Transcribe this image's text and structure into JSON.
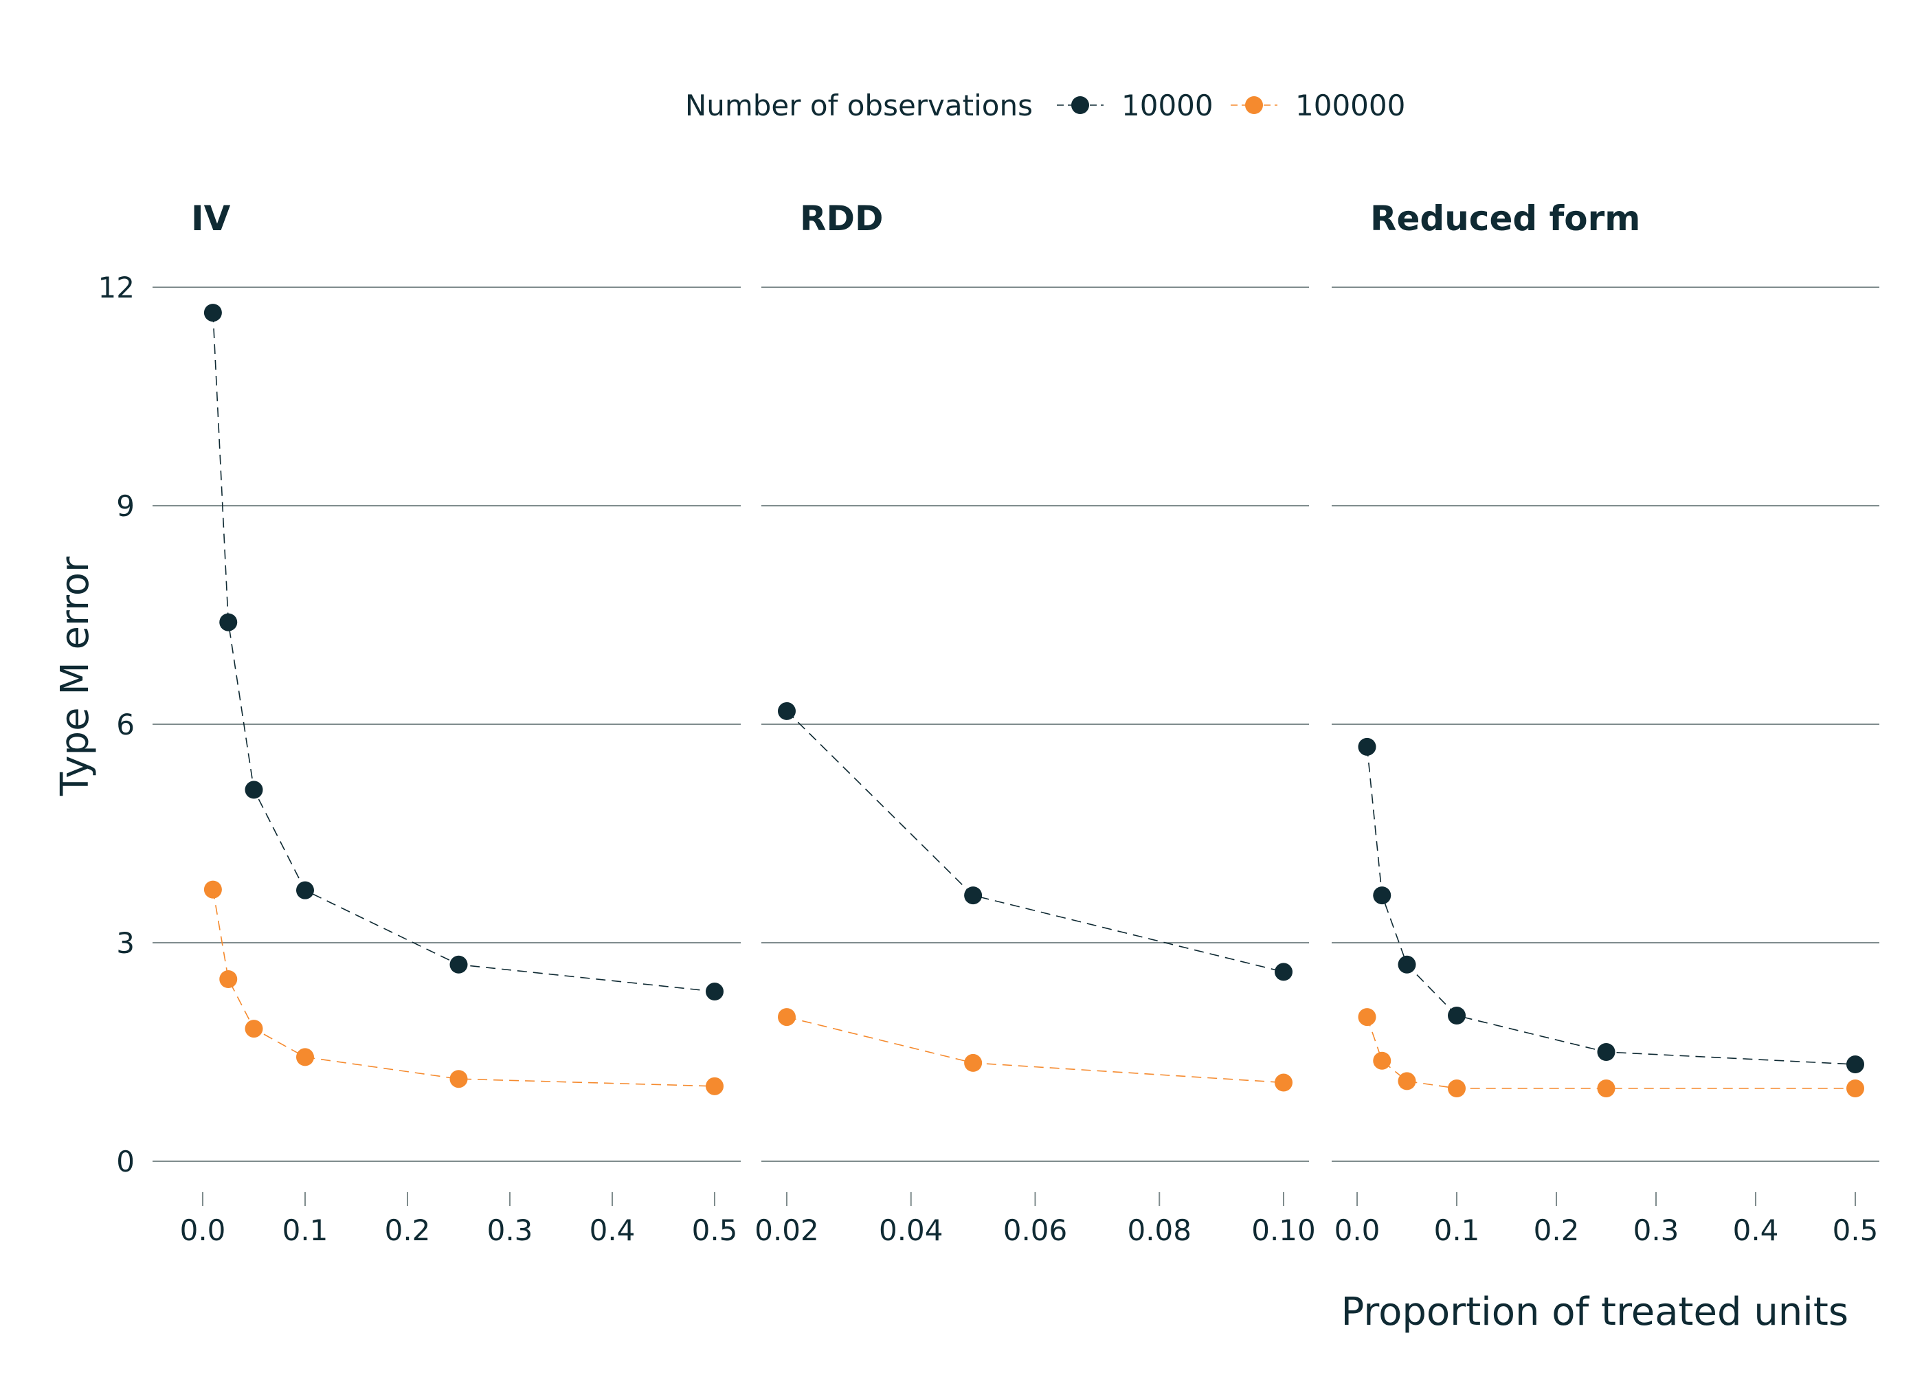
{
  "chart_data": {
    "type": "line",
    "ylabel": "Type M error",
    "xlabel": "Proportion of treated units",
    "legend": {
      "title": "Number of observations",
      "position": "top",
      "entries": [
        "10000",
        "100000"
      ]
    },
    "colors": {
      "10000": "#0f2a33",
      "100000": "#f58a2e"
    },
    "grid": "horizontal",
    "ylim": [
      0,
      12
    ],
    "yticks": [
      "0",
      "3",
      "6",
      "9",
      "12"
    ],
    "panels": [
      {
        "title": "IV",
        "xlim": [
          0,
          0.5
        ],
        "xticks": [
          "0.0",
          "0.1",
          "0.2",
          "0.3",
          "0.4",
          "0.5"
        ],
        "series": [
          {
            "name": "10000",
            "x": [
              0.01,
              0.025,
              0.05,
              0.1,
              0.25,
              0.5
            ],
            "y": [
              11.65,
              7.4,
              5.1,
              3.72,
              2.7,
              2.33
            ]
          },
          {
            "name": "100000",
            "x": [
              0.01,
              0.025,
              0.05,
              0.1,
              0.25,
              0.5
            ],
            "y": [
              3.73,
              2.5,
              1.82,
              1.43,
              1.13,
              1.03
            ]
          }
        ]
      },
      {
        "title": "RDD",
        "xlim": [
          0.02,
          0.1
        ],
        "xticks": [
          "0.02",
          "0.04",
          "0.06",
          "0.08",
          "0.10"
        ],
        "series": [
          {
            "name": "10000",
            "x": [
              0.02,
              0.05,
              0.1
            ],
            "y": [
              6.18,
              3.65,
              2.6
            ]
          },
          {
            "name": "100000",
            "x": [
              0.02,
              0.05,
              0.1
            ],
            "y": [
              1.98,
              1.35,
              1.08
            ]
          }
        ]
      },
      {
        "title": "Reduced form",
        "xlim": [
          0,
          0.5
        ],
        "xticks": [
          "0.0",
          "0.1",
          "0.2",
          "0.3",
          "0.4",
          "0.5"
        ],
        "series": [
          {
            "name": "10000",
            "x": [
              0.01,
              0.025,
              0.05,
              0.1,
              0.25,
              0.5
            ],
            "y": [
              5.69,
              3.65,
              2.7,
              2.0,
              1.5,
              1.33
            ]
          },
          {
            "name": "100000",
            "x": [
              0.01,
              0.025,
              0.05,
              0.1,
              0.25,
              0.5
            ],
            "y": [
              1.98,
              1.38,
              1.1,
              1.0,
              1.0,
              1.0
            ]
          }
        ]
      }
    ]
  }
}
